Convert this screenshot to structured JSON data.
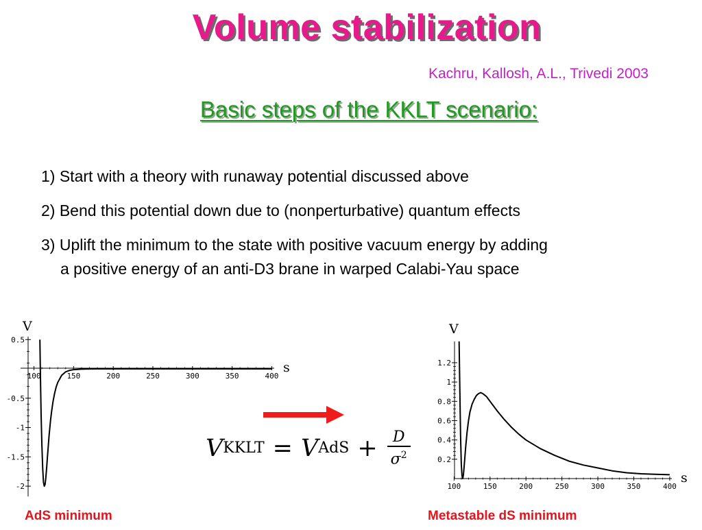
{
  "slide": {
    "title": "Volume stabilization",
    "citation": "Kachru, Kallosh, A.L., Trivedi 2003",
    "subtitle": "Basic steps of the KKLT scenario:",
    "steps": [
      {
        "line1": "1) Start with a theory with runaway potential discussed above",
        "line2": ""
      },
      {
        "line1": "2) Bend this potential down due to (nonperturbative) quantum effects",
        "line2": ""
      },
      {
        "line1": "3) Uplift the minimum to the state with positive vacuum energy by adding",
        "line2": "a positive energy of an anti-D3 brane in warped Calabi-Yau space"
      }
    ],
    "formula": {
      "lhs_var": "V",
      "lhs_sub": "KKLT",
      "eq": "=",
      "rhs_var": "V",
      "rhs_sub": "AdS",
      "plus": "+",
      "num": "D",
      "den": "σ",
      "den_exp": "2"
    },
    "captions": {
      "left": "AdS minimum",
      "right": "Metastable dS minimum"
    },
    "colors": {
      "title": "#e8198b",
      "citation": "#c21fc9",
      "subtitle": "#1f9a1f",
      "caption": "#e0151e",
      "arrow": "#ee1c1c"
    },
    "arrow_icon": "right-arrow-icon"
  },
  "chart_data": [
    {
      "type": "line",
      "title": "",
      "xlabel": "s",
      "ylabel": "V",
      "xlim": [
        90,
        410
      ],
      "ylim": [
        -2.35,
        0.55
      ],
      "xticks": [
        100,
        150,
        200,
        250,
        300,
        350,
        400
      ],
      "xtick_labels": [
        "100",
        "150",
        "200",
        "250",
        "300",
        "350",
        "400"
      ],
      "yticks": [
        0.5,
        -0.5,
        -1,
        -1.5,
        -2
      ],
      "ytick_labels": [
        "0.5",
        "-0.5",
        "-1",
        "-1.5",
        "-2"
      ],
      "grid": false,
      "series": [
        {
          "x": [
            107.5,
            108,
            109,
            110,
            111,
            112,
            113,
            114,
            115,
            116,
            117,
            118,
            119,
            120,
            121,
            122,
            124,
            126,
            128,
            130,
            135,
            140,
            145,
            150,
            160,
            170,
            180,
            200,
            250,
            300,
            350,
            400
          ],
          "y": [
            0.5,
            0.0,
            -0.8,
            -1.3,
            -1.7,
            -1.93,
            -2.0,
            -1.97,
            -1.85,
            -1.68,
            -1.5,
            -1.32,
            -1.15,
            -1.0,
            -0.87,
            -0.75,
            -0.56,
            -0.42,
            -0.31,
            -0.23,
            -0.11,
            -0.05,
            -0.025,
            -0.012,
            -0.004,
            -0.001,
            0.0,
            0.0,
            0.0,
            0.0,
            0.0,
            0.0
          ]
        }
      ]
    },
    {
      "type": "line",
      "title": "",
      "xlabel": "s",
      "ylabel": "V",
      "xlim": [
        92,
        402
      ],
      "ylim": [
        0.0,
        1.42
      ],
      "xticks": [
        100,
        150,
        200,
        250,
        300,
        350,
        400
      ],
      "xtick_labels": [
        "100",
        "150",
        "200",
        "250",
        "300",
        "350",
        "400"
      ],
      "yticks": [
        0.2,
        0.4,
        0.6,
        0.8,
        1,
        1.2
      ],
      "ytick_labels": [
        "0.2",
        "0.4",
        "0.6",
        "0.8",
        "1",
        "1.2"
      ],
      "grid": false,
      "series": [
        {
          "x": [
            107,
            108,
            109,
            110,
            111,
            112,
            113,
            114,
            116,
            118,
            120,
            122,
            125,
            128,
            131,
            134,
            137,
            140,
            145,
            150,
            160,
            170,
            180,
            190,
            200,
            220,
            240,
            260,
            280,
            300,
            320,
            340,
            360,
            380,
            400
          ],
          "y": [
            1.42,
            0.9,
            0.45,
            0.15,
            0.03,
            0.0,
            0.04,
            0.13,
            0.32,
            0.48,
            0.6,
            0.69,
            0.77,
            0.82,
            0.86,
            0.88,
            0.89,
            0.88,
            0.85,
            0.8,
            0.7,
            0.61,
            0.53,
            0.46,
            0.4,
            0.31,
            0.24,
            0.18,
            0.14,
            0.11,
            0.08,
            0.06,
            0.05,
            0.045,
            0.04
          ]
        }
      ]
    }
  ]
}
